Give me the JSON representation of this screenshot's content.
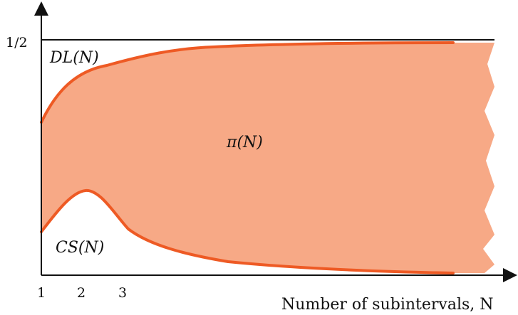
{
  "chart_data": {
    "type": "area",
    "x": [
      1,
      2,
      3
    ],
    "x_tick_labels": [
      "1",
      "2",
      "3"
    ],
    "y_tick_labels": [
      "1/2"
    ],
    "xlabel": "Number of subintervals, N",
    "annotations": {
      "upper": "DL(N)",
      "region": "π(N)",
      "lower": "CS(N)"
    },
    "series": [
      {
        "name": "DL(N)",
        "role": "upper-bound"
      },
      {
        "name": "CS(N)",
        "role": "lower-bound"
      }
    ],
    "colors": {
      "fill": "#f7a986",
      "curve": "#ee5a24",
      "axis": "#111111"
    },
    "grid": false
  }
}
